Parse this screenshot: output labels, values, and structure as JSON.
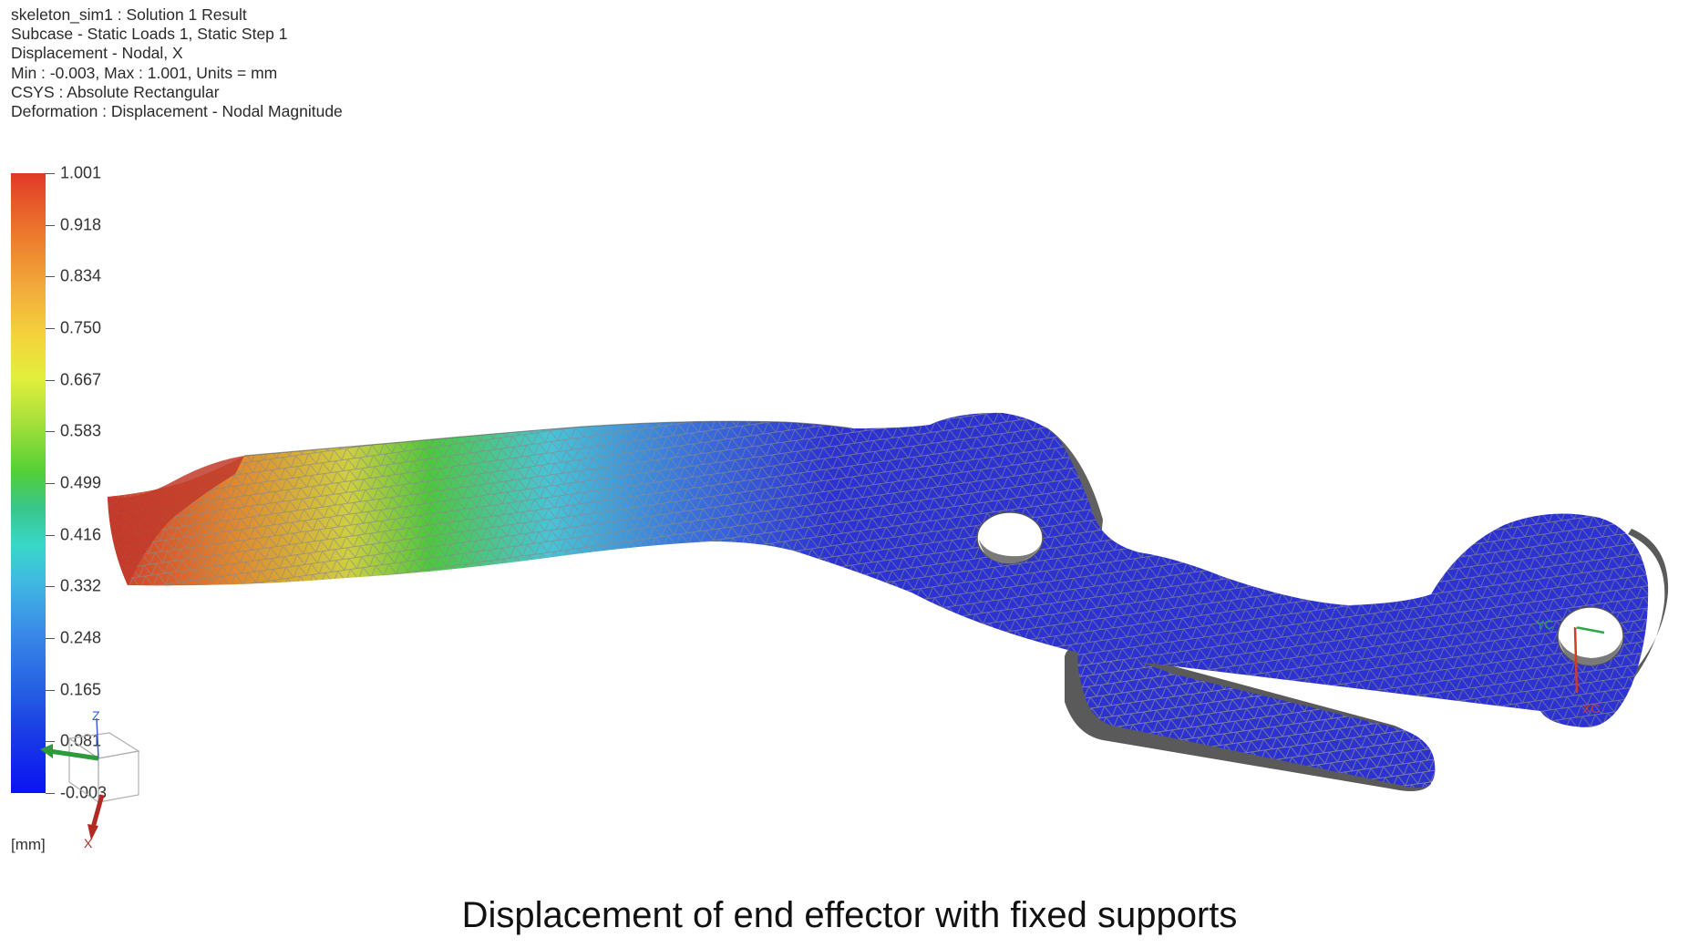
{
  "header": {
    "lines": [
      "skeleton_sim1 : Solution 1 Result",
      "Subcase - Static Loads 1, Static Step 1",
      "Displacement - Nodal, X",
      "Min : -0.003, Max : 1.001, Units = mm",
      "CSYS : Absolute Rectangular",
      "Deformation : Displacement - Nodal Magnitude"
    ]
  },
  "legend": {
    "ticks": [
      "1.001",
      "0.918",
      "0.834",
      "0.750",
      "0.667",
      "0.583",
      "0.499",
      "0.416",
      "0.332",
      "0.248",
      "0.165",
      "0.081",
      "-0.003"
    ],
    "units": "[mm]",
    "colors": {
      "max": "#e03a26",
      "mid": "#54d036",
      "min": "#0a12f2"
    }
  },
  "triad": {
    "z_label": "Z",
    "x_label": "X"
  },
  "model": {
    "wcs_labels": [
      "YC",
      "XC"
    ],
    "colors": {
      "tip": "#d0382a",
      "orange": "#e0892e",
      "yellow": "#cfcf40",
      "green": "#4cc83c",
      "cyan": "#48c4d8",
      "blue": "#2c32d2",
      "mesh": "#8a8a8a",
      "side": "#6a6a6a"
    }
  },
  "caption": "Displacement of end effector with fixed supports"
}
